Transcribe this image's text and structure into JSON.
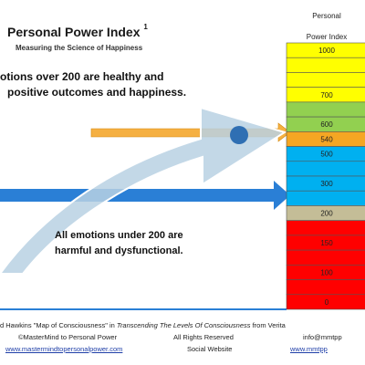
{
  "header": {
    "title": "Personal Power Index",
    "title_superscript": "1",
    "subtitle": "Measuring the Science of Happiness"
  },
  "statements": {
    "over_200_line1": "otions over 200 are healthy and",
    "over_200_line2": "positive outcomes and happiness.",
    "under_200_line1": "All emotions under 200 are",
    "under_200_line2": "harmful and dysfunctional."
  },
  "index_column": {
    "header_line1": "Personal",
    "header_line2": "Power Index",
    "levels": [
      {
        "label": "1000",
        "color": "#ffff00"
      },
      {
        "label": "",
        "color": "#ffff00"
      },
      {
        "label": "",
        "color": "#ffff00"
      },
      {
        "label": "700",
        "color": "#ffff00"
      },
      {
        "label": "",
        "color": "#92d050"
      },
      {
        "label": "600",
        "color": "#92d050"
      },
      {
        "label": "540",
        "color": "#f5a623"
      },
      {
        "label": "500",
        "color": "#00b0f0"
      },
      {
        "label": "",
        "color": "#00b0f0"
      },
      {
        "label": "300",
        "color": "#00b0f0"
      },
      {
        "label": "",
        "color": "#00b0f0"
      },
      {
        "label": "200",
        "color": "#c4bd97"
      },
      {
        "label": "",
        "color": "#ff0000"
      },
      {
        "label": "150",
        "color": "#ff0000"
      },
      {
        "label": "",
        "color": "#ff0000"
      },
      {
        "label": "100",
        "color": "#ff0000"
      },
      {
        "label": "",
        "color": "#ff0000"
      },
      {
        "label": "0",
        "color": "#ff0000"
      }
    ]
  },
  "footer": {
    "credit_prefix": "d Hawkins \"Map of Consciousness\" in ",
    "credit_book": "Transcending The Levels Of Consciousness",
    "credit_suffix": "  from Verita",
    "copyright": "©MasterMind to Personal Power",
    "rights": "All Rights Reserved",
    "email": "info@mmtpp",
    "website_link": "www.mastermindtopersonalpower.com",
    "social_label": "Social Website",
    "social_link": "www.mmtpp"
  },
  "colors": {
    "arrow_orange": "#f5b042",
    "arrow_blue": "#2a7fd6",
    "sweep_arrow": "#b7cfe0",
    "dot": "#2f6fb3"
  }
}
